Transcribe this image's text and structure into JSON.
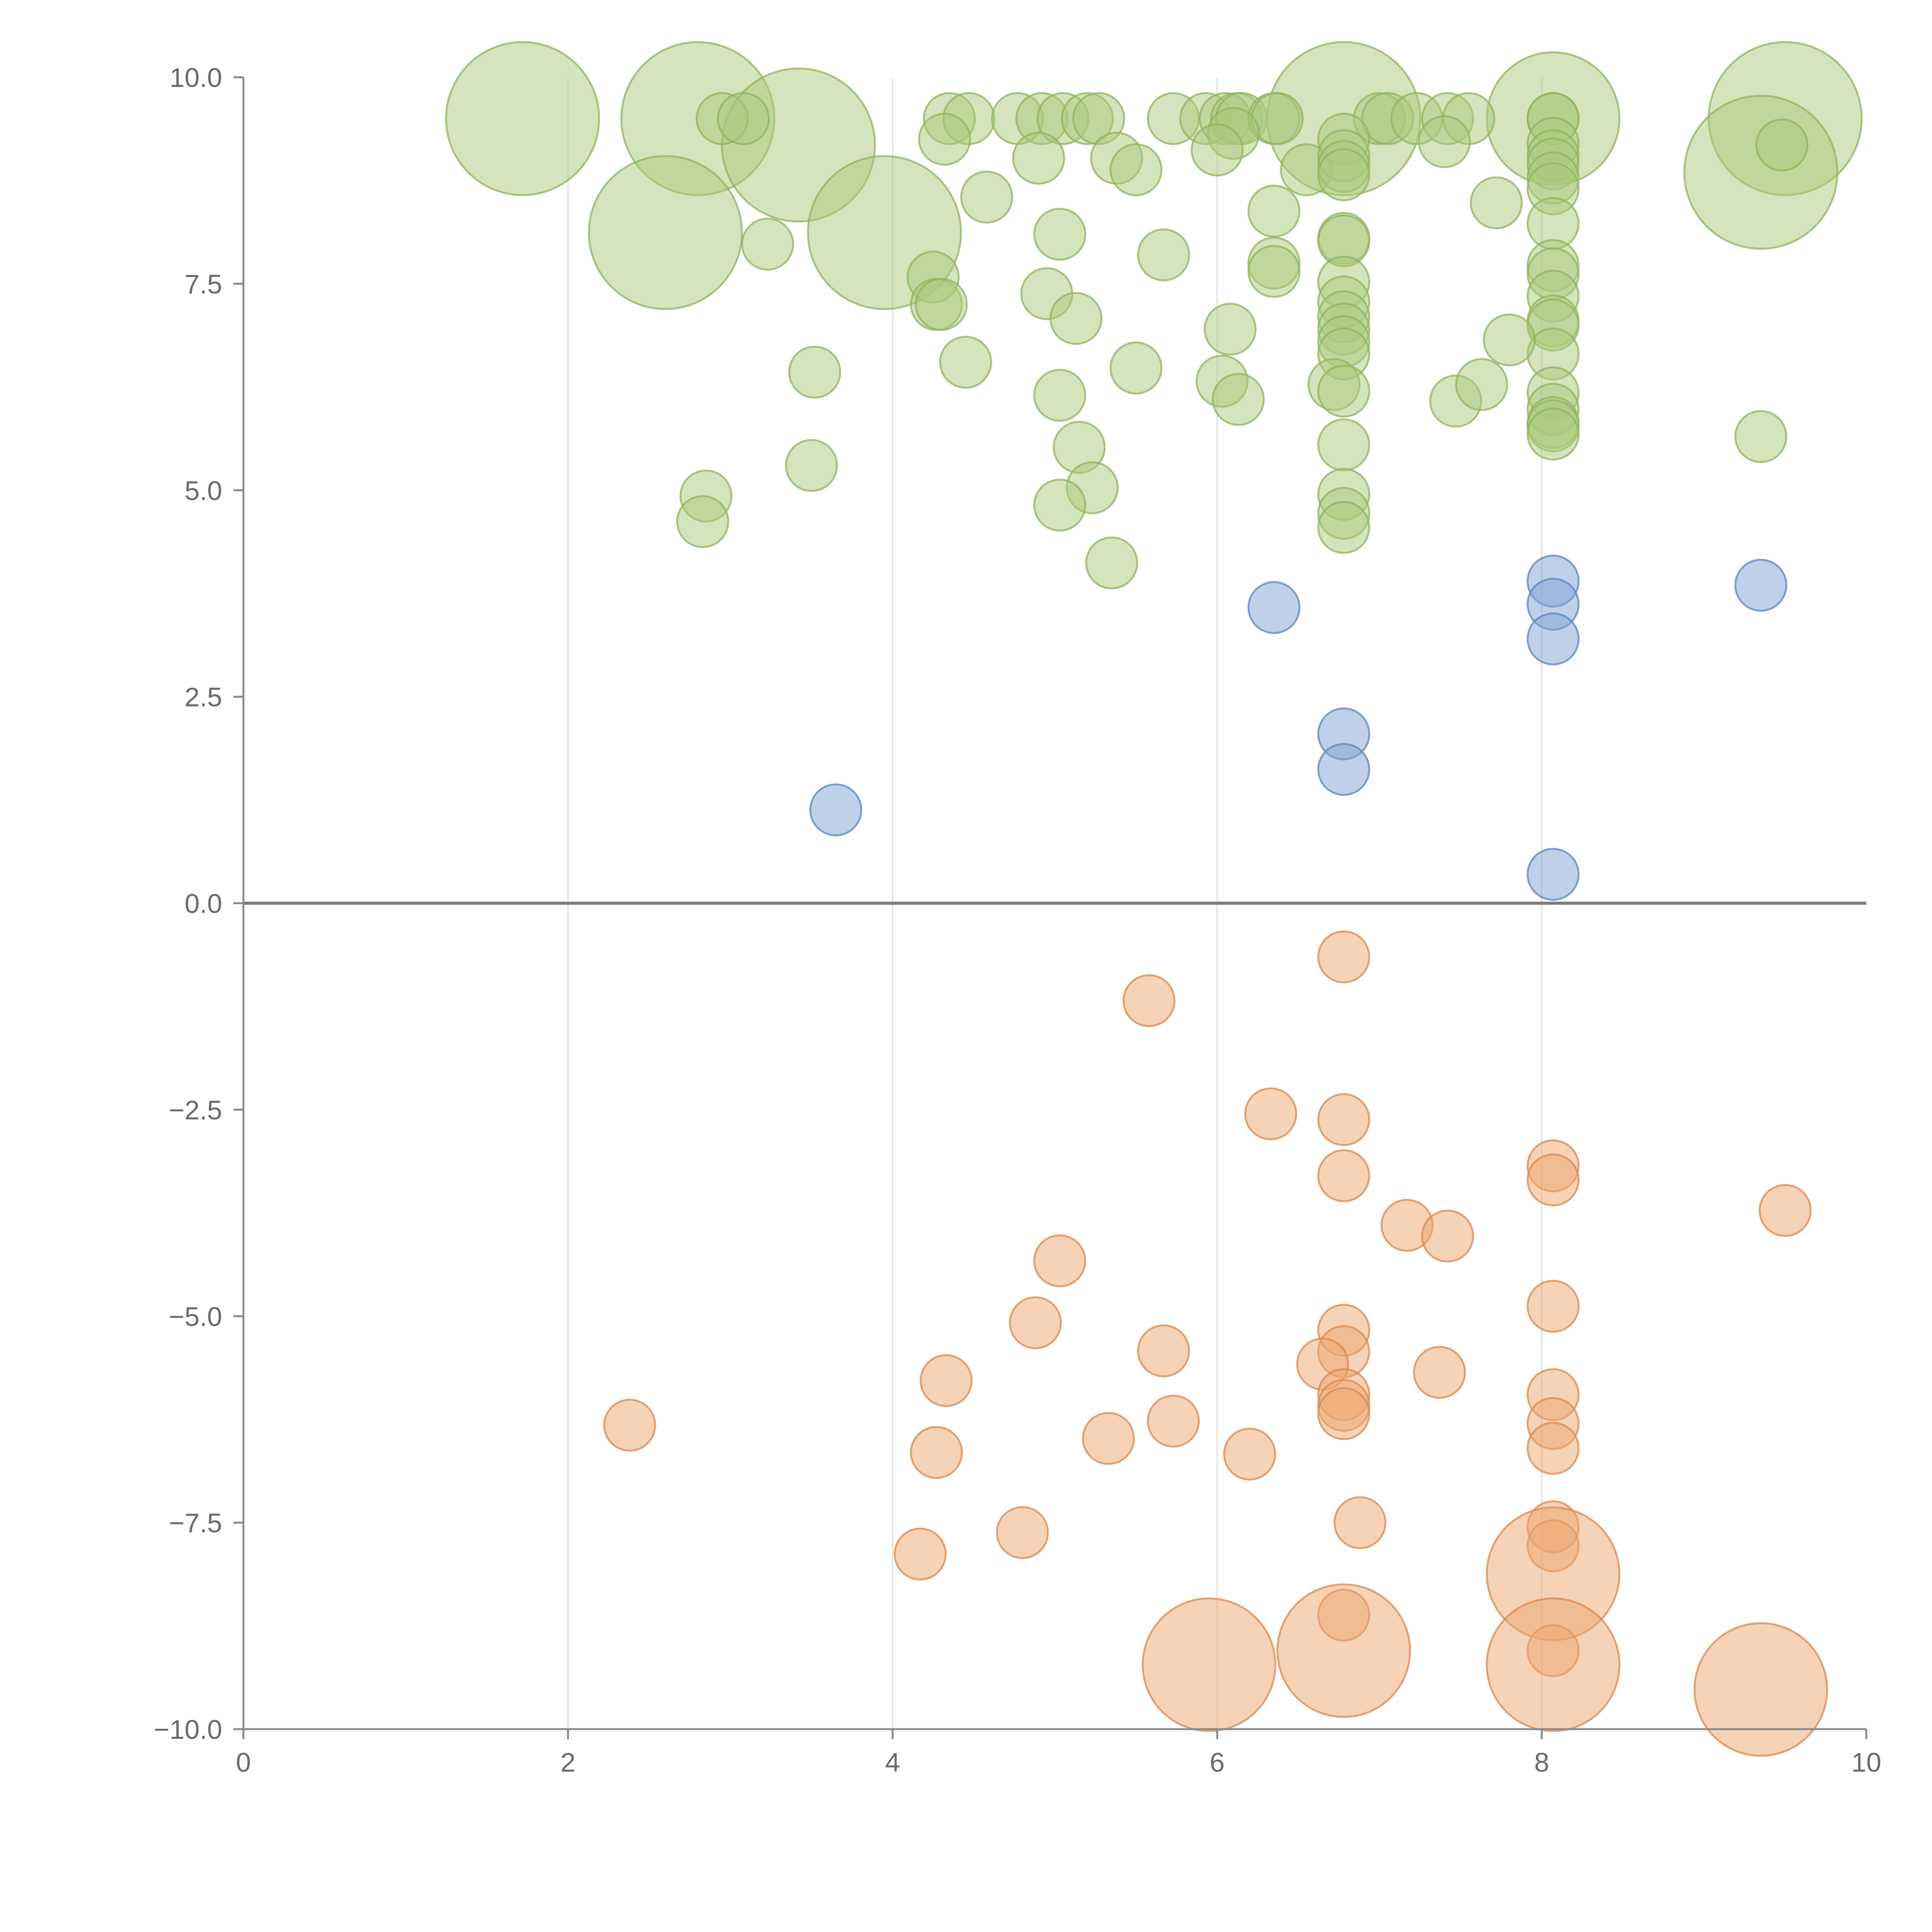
{
  "chart_data": {
    "type": "scatter",
    "title": "",
    "xlabel": "",
    "ylabel": "",
    "xlim": [
      0,
      10
    ],
    "ylim": [
      -10,
      10
    ],
    "grid": {
      "x": true,
      "y": false
    },
    "zero_line": true,
    "legend": "none",
    "x_ticks": [
      "0",
      "2",
      "4",
      "6",
      "8",
      "10"
    ],
    "y_ticks": [
      "10.0",
      "7.5",
      "5.0",
      "2.5",
      "0.0",
      "−2.5",
      "−5.0",
      "−7.5",
      "−10.0"
    ],
    "colors": {
      "high": {
        "fill": "#a9c97b",
        "stroke": "#8fb45e"
      },
      "mid": {
        "fill": "#7fa3d3",
        "stroke": "#5e86bd"
      },
      "low": {
        "fill": "#eda56f",
        "stroke": "#d98a4f"
      }
    },
    "series": [
      {
        "group": "high",
        "points": [
          {
            "x": 1.72,
            "y": 9.5,
            "r": 3
          },
          {
            "x": 2.8,
            "y": 9.5,
            "r": 3
          },
          {
            "x": 3.42,
            "y": 9.18,
            "r": 3
          },
          {
            "x": 2.6,
            "y": 8.12,
            "r": 3
          },
          {
            "x": 3.95,
            "y": 8.12,
            "r": 3
          },
          {
            "x": 6.78,
            "y": 9.5,
            "r": 3
          },
          {
            "x": 8.07,
            "y": 9.5,
            "r": 2.6
          },
          {
            "x": 9.5,
            "y": 9.5,
            "r": 3
          },
          {
            "x": 9.35,
            "y": 8.85,
            "r": 3
          },
          {
            "x": 2.95,
            "y": 9.5,
            "r": 1
          },
          {
            "x": 3.08,
            "y": 9.5,
            "r": 1
          },
          {
            "x": 4.35,
            "y": 9.5,
            "r": 1
          },
          {
            "x": 4.47,
            "y": 9.5,
            "r": 1
          },
          {
            "x": 4.32,
            "y": 9.25,
            "r": 1
          },
          {
            "x": 4.77,
            "y": 9.5,
            "r": 1
          },
          {
            "x": 4.92,
            "y": 9.5,
            "r": 1
          },
          {
            "x": 5.05,
            "y": 9.5,
            "r": 1
          },
          {
            "x": 5.2,
            "y": 9.5,
            "r": 1
          },
          {
            "x": 5.27,
            "y": 9.5,
            "r": 1
          },
          {
            "x": 4.9,
            "y": 9.02,
            "r": 1
          },
          {
            "x": 5.38,
            "y": 9.02,
            "r": 1
          },
          {
            "x": 5.5,
            "y": 8.88,
            "r": 1
          },
          {
            "x": 5.73,
            "y": 9.5,
            "r": 1
          },
          {
            "x": 5.93,
            "y": 9.5,
            "r": 1
          },
          {
            "x": 6.05,
            "y": 9.5,
            "r": 1
          },
          {
            "x": 6.12,
            "y": 9.5,
            "r": 1
          },
          {
            "x": 6.15,
            "y": 9.5,
            "r": 1
          },
          {
            "x": 6.35,
            "y": 9.5,
            "r": 1
          },
          {
            "x": 6.37,
            "y": 9.5,
            "r": 1
          },
          {
            "x": 6.1,
            "y": 9.32,
            "r": 1
          },
          {
            "x": 6.0,
            "y": 9.12,
            "r": 1
          },
          {
            "x": 6.55,
            "y": 8.88,
            "r": 1
          },
          {
            "x": 6.35,
            "y": 8.38,
            "r": 1
          },
          {
            "x": 7.0,
            "y": 9.5,
            "r": 1
          },
          {
            "x": 7.05,
            "y": 9.5,
            "r": 1
          },
          {
            "x": 7.23,
            "y": 9.5,
            "r": 1
          },
          {
            "x": 7.42,
            "y": 9.5,
            "r": 1
          },
          {
            "x": 7.55,
            "y": 9.5,
            "r": 1
          },
          {
            "x": 7.4,
            "y": 9.22,
            "r": 1
          },
          {
            "x": 7.72,
            "y": 8.48,
            "r": 1
          },
          {
            "x": 6.78,
            "y": 9.25,
            "r": 1
          },
          {
            "x": 6.78,
            "y": 9.05,
            "r": 1
          },
          {
            "x": 6.78,
            "y": 8.92,
            "r": 1
          },
          {
            "x": 6.78,
            "y": 8.82,
            "r": 1
          },
          {
            "x": 6.78,
            "y": 8.05,
            "r": 1
          },
          {
            "x": 6.78,
            "y": 8.02,
            "r": 1
          },
          {
            "x": 6.78,
            "y": 7.52,
            "r": 1
          },
          {
            "x": 6.78,
            "y": 7.28,
            "r": 1
          },
          {
            "x": 6.78,
            "y": 7.1,
            "r": 1
          },
          {
            "x": 6.78,
            "y": 6.95,
            "r": 1
          },
          {
            "x": 6.78,
            "y": 6.8,
            "r": 1
          },
          {
            "x": 6.78,
            "y": 6.65,
            "r": 1
          },
          {
            "x": 6.72,
            "y": 6.28,
            "r": 1
          },
          {
            "x": 6.78,
            "y": 6.2,
            "r": 1
          },
          {
            "x": 6.78,
            "y": 5.55,
            "r": 1
          },
          {
            "x": 6.78,
            "y": 4.95,
            "r": 1
          },
          {
            "x": 6.78,
            "y": 4.72,
            "r": 1
          },
          {
            "x": 6.78,
            "y": 4.55,
            "r": 1
          },
          {
            "x": 8.07,
            "y": 9.5,
            "r": 1
          },
          {
            "x": 8.07,
            "y": 9.5,
            "r": 1
          },
          {
            "x": 8.07,
            "y": 9.2,
            "r": 1
          },
          {
            "x": 8.07,
            "y": 9.05,
            "r": 1
          },
          {
            "x": 8.07,
            "y": 8.95,
            "r": 1
          },
          {
            "x": 8.07,
            "y": 8.78,
            "r": 1
          },
          {
            "x": 8.07,
            "y": 8.65,
            "r": 1
          },
          {
            "x": 8.07,
            "y": 8.23,
            "r": 1
          },
          {
            "x": 8.07,
            "y": 7.72,
            "r": 1
          },
          {
            "x": 8.07,
            "y": 7.62,
            "r": 1
          },
          {
            "x": 8.07,
            "y": 7.35,
            "r": 1
          },
          {
            "x": 8.07,
            "y": 7.05,
            "r": 1
          },
          {
            "x": 8.07,
            "y": 7.0,
            "r": 1
          },
          {
            "x": 8.07,
            "y": 6.65,
            "r": 1
          },
          {
            "x": 8.07,
            "y": 6.18,
            "r": 1
          },
          {
            "x": 8.07,
            "y": 5.98,
            "r": 1
          },
          {
            "x": 8.07,
            "y": 5.82,
            "r": 1
          },
          {
            "x": 8.07,
            "y": 5.78,
            "r": 1
          },
          {
            "x": 8.07,
            "y": 5.68,
            "r": 1
          },
          {
            "x": 9.48,
            "y": 9.18,
            "r": 1
          },
          {
            "x": 9.35,
            "y": 5.65,
            "r": 1
          },
          {
            "x": 3.23,
            "y": 7.98,
            "r": 1
          },
          {
            "x": 4.58,
            "y": 8.55,
            "r": 1
          },
          {
            "x": 5.03,
            "y": 8.1,
            "r": 1
          },
          {
            "x": 5.67,
            "y": 7.85,
            "r": 1
          },
          {
            "x": 4.25,
            "y": 7.58,
            "r": 1
          },
          {
            "x": 4.27,
            "y": 7.25,
            "r": 1
          },
          {
            "x": 4.3,
            "y": 7.25,
            "r": 1
          },
          {
            "x": 4.95,
            "y": 7.38,
            "r": 1
          },
          {
            "x": 5.13,
            "y": 7.08,
            "r": 1
          },
          {
            "x": 6.08,
            "y": 6.95,
            "r": 1
          },
          {
            "x": 6.35,
            "y": 7.75,
            "r": 1
          },
          {
            "x": 6.35,
            "y": 7.65,
            "r": 1
          },
          {
            "x": 7.8,
            "y": 6.82,
            "r": 1
          },
          {
            "x": 3.52,
            "y": 6.43,
            "r": 1
          },
          {
            "x": 4.45,
            "y": 6.55,
            "r": 1
          },
          {
            "x": 5.5,
            "y": 6.48,
            "r": 1
          },
          {
            "x": 5.03,
            "y": 6.15,
            "r": 1
          },
          {
            "x": 6.03,
            "y": 6.32,
            "r": 1
          },
          {
            "x": 6.13,
            "y": 6.1,
            "r": 1
          },
          {
            "x": 7.47,
            "y": 6.08,
            "r": 1
          },
          {
            "x": 7.63,
            "y": 6.28,
            "r": 1
          },
          {
            "x": 5.15,
            "y": 5.52,
            "r": 1
          },
          {
            "x": 3.5,
            "y": 5.3,
            "r": 1
          },
          {
            "x": 5.23,
            "y": 5.03,
            "r": 1
          },
          {
            "x": 5.03,
            "y": 4.82,
            "r": 1
          },
          {
            "x": 2.85,
            "y": 4.93,
            "r": 1
          },
          {
            "x": 2.83,
            "y": 4.62,
            "r": 1
          },
          {
            "x": 5.35,
            "y": 4.12,
            "r": 1
          }
        ]
      },
      {
        "group": "mid",
        "points": [
          {
            "x": 6.35,
            "y": 3.58,
            "r": 1
          },
          {
            "x": 8.07,
            "y": 3.9,
            "r": 1
          },
          {
            "x": 8.07,
            "y": 3.62,
            "r": 1
          },
          {
            "x": 8.07,
            "y": 3.2,
            "r": 1
          },
          {
            "x": 9.35,
            "y": 3.85,
            "r": 1
          },
          {
            "x": 6.78,
            "y": 2.05,
            "r": 1
          },
          {
            "x": 6.78,
            "y": 1.62,
            "r": 1
          },
          {
            "x": 3.65,
            "y": 1.13,
            "r": 1
          },
          {
            "x": 8.07,
            "y": 0.35,
            "r": 1
          }
        ]
      },
      {
        "group": "low",
        "points": [
          {
            "x": 6.78,
            "y": -0.65,
            "r": 1
          },
          {
            "x": 5.58,
            "y": -1.18,
            "r": 1
          },
          {
            "x": 6.33,
            "y": -2.55,
            "r": 1
          },
          {
            "x": 6.78,
            "y": -2.62,
            "r": 1
          },
          {
            "x": 6.78,
            "y": -3.3,
            "r": 1
          },
          {
            "x": 8.07,
            "y": -3.18,
            "r": 1
          },
          {
            "x": 8.07,
            "y": -3.35,
            "r": 1
          },
          {
            "x": 9.5,
            "y": -3.72,
            "r": 1
          },
          {
            "x": 7.17,
            "y": -3.9,
            "r": 1
          },
          {
            "x": 7.42,
            "y": -4.03,
            "r": 1
          },
          {
            "x": 5.03,
            "y": -4.33,
            "r": 1
          },
          {
            "x": 8.07,
            "y": -4.88,
            "r": 1
          },
          {
            "x": 4.88,
            "y": -5.08,
            "r": 1
          },
          {
            "x": 6.78,
            "y": -5.17,
            "r": 1
          },
          {
            "x": 6.78,
            "y": -5.43,
            "r": 1
          },
          {
            "x": 5.67,
            "y": -5.42,
            "r": 1
          },
          {
            "x": 6.65,
            "y": -5.58,
            "r": 1
          },
          {
            "x": 7.37,
            "y": -5.68,
            "r": 1
          },
          {
            "x": 4.33,
            "y": -5.78,
            "r": 1
          },
          {
            "x": 8.07,
            "y": -5.95,
            "r": 1
          },
          {
            "x": 6.78,
            "y": -5.95,
            "r": 1
          },
          {
            "x": 6.78,
            "y": -6.08,
            "r": 1
          },
          {
            "x": 6.78,
            "y": -6.18,
            "r": 1
          },
          {
            "x": 5.73,
            "y": -6.27,
            "r": 1
          },
          {
            "x": 8.07,
            "y": -6.3,
            "r": 1
          },
          {
            "x": 2.38,
            "y": -6.32,
            "r": 1
          },
          {
            "x": 5.33,
            "y": -6.48,
            "r": 1
          },
          {
            "x": 8.07,
            "y": -6.6,
            "r": 1
          },
          {
            "x": 4.27,
            "y": -6.65,
            "r": 1
          },
          {
            "x": 6.2,
            "y": -6.67,
            "r": 1
          },
          {
            "x": 6.88,
            "y": -7.5,
            "r": 1
          },
          {
            "x": 8.07,
            "y": -7.55,
            "r": 1
          },
          {
            "x": 4.8,
            "y": -7.62,
            "r": 1
          },
          {
            "x": 8.07,
            "y": -7.78,
            "r": 1
          },
          {
            "x": 4.17,
            "y": -7.88,
            "r": 1
          },
          {
            "x": 8.07,
            "y": -8.12,
            "r": 2.6
          },
          {
            "x": 6.78,
            "y": -8.62,
            "r": 1
          },
          {
            "x": 6.78,
            "y": -9.05,
            "r": 2.6
          },
          {
            "x": 8.07,
            "y": -9.05,
            "r": 1
          },
          {
            "x": 5.95,
            "y": -9.22,
            "r": 2.6
          },
          {
            "x": 8.07,
            "y": -9.22,
            "r": 2.6
          },
          {
            "x": 9.35,
            "y": -9.52,
            "r": 2.6
          }
        ]
      }
    ]
  }
}
